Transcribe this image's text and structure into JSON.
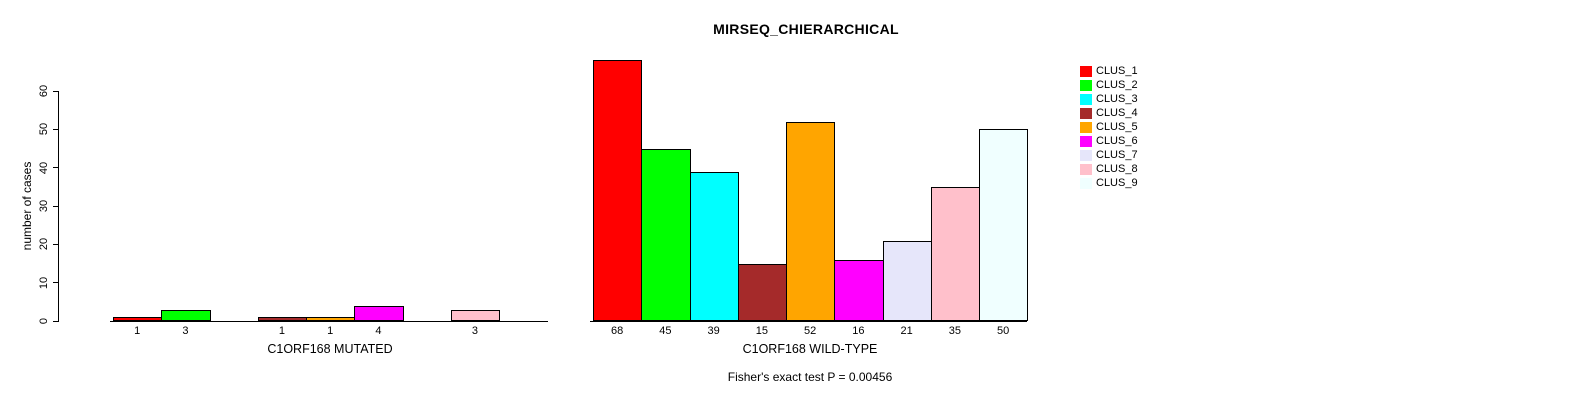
{
  "chart_data": {
    "type": "bar",
    "title": "MIRSEQ_CHIERARCHICAL",
    "ylabel": "number of cases",
    "ylim": [
      0,
      60
    ],
    "yticks": [
      "0",
      "10",
      "20",
      "30",
      "40",
      "50",
      "60"
    ],
    "grid": false,
    "legend_position": "right",
    "categories": [
      "CLUS_1",
      "CLUS_2",
      "CLUS_3",
      "CLUS_4",
      "CLUS_5",
      "CLUS_6",
      "CLUS_7",
      "CLUS_8",
      "CLUS_9"
    ],
    "colors": [
      "#FF0000",
      "#00FF00",
      "#00FFFF",
      "#A52A2A",
      "#FFA500",
      "#FF00FF",
      "#E6E6FA",
      "#FFC0CB",
      "#F0FFFF"
    ],
    "panels": [
      {
        "xlabel": "C1ORF168 MUTATED",
        "values": [
          1,
          3,
          0,
          1,
          1,
          4,
          0,
          3,
          0
        ],
        "bar_labels": [
          "1",
          "3",
          "",
          "1",
          "1",
          "4",
          "",
          "3",
          ""
        ]
      },
      {
        "xlabel": "C1ORF168 WILD-TYPE",
        "values": [
          68,
          45,
          39,
          15,
          52,
          16,
          21,
          35,
          50
        ],
        "bar_labels": [
          "68",
          "45",
          "39",
          "15",
          "52",
          "16",
          "21",
          "35",
          "50"
        ]
      }
    ],
    "footnote": "Fisher's exact test P = 0.00456"
  }
}
